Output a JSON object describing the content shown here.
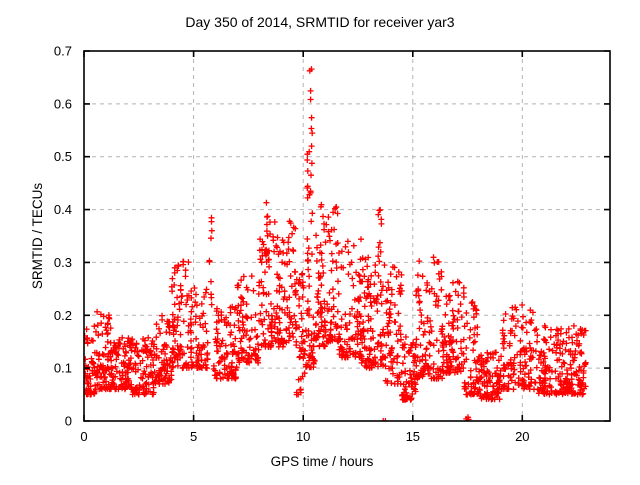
{
  "chart_data": {
    "type": "scatter",
    "title": "Day 350 of 2014, SRMTID for receiver yar3",
    "xlabel": "GPS time / hours",
    "ylabel": "SRMTID / TECUs",
    "xlim": [
      0,
      24
    ],
    "ylim": [
      0,
      0.7
    ],
    "xtick_labels": [
      "0",
      "5",
      "10",
      "15",
      "20"
    ],
    "xtick_values": [
      0,
      5,
      10,
      15,
      20
    ],
    "ytick_labels": [
      "0",
      "0.1",
      "0.2",
      "0.3",
      "0.4",
      "0.5",
      "0.6",
      "0.7"
    ],
    "ytick_values": [
      0,
      0.1,
      0.2,
      0.3,
      0.4,
      0.5,
      0.6,
      0.7
    ],
    "grid": true,
    "legend": "none",
    "marker": {
      "shape": "plus",
      "color": "#ff0000",
      "size": 7
    },
    "grid_color": "#b4b4b4",
    "border_color": "#000000",
    "background_color": "#ffffff",
    "segment_fields": [
      "hour_start",
      "hour_end",
      "y_min",
      "y_max",
      "n_points",
      "density_exponent",
      "uniform_column"
    ],
    "segments": [
      [
        0.0,
        0.55,
        0.05,
        0.18,
        60,
        2.2,
        0
      ],
      [
        0.55,
        1.25,
        0.06,
        0.21,
        80,
        2.0,
        0
      ],
      [
        1.25,
        2.2,
        0.06,
        0.16,
        95,
        1.8,
        0
      ],
      [
        2.2,
        3.2,
        0.05,
        0.16,
        90,
        1.8,
        0
      ],
      [
        3.2,
        4.0,
        0.07,
        0.2,
        75,
        1.8,
        0
      ],
      [
        4.0,
        4.85,
        0.1,
        0.31,
        80,
        1.9,
        0
      ],
      [
        4.85,
        5.65,
        0.1,
        0.26,
        70,
        1.8,
        0
      ],
      [
        5.72,
        5.88,
        0.22,
        0.41,
        10,
        1.0,
        1
      ],
      [
        5.9,
        7.0,
        0.08,
        0.22,
        95,
        1.9,
        0
      ],
      [
        7.0,
        8.0,
        0.11,
        0.28,
        85,
        1.8,
        0
      ],
      [
        8.0,
        8.7,
        0.14,
        0.36,
        65,
        1.7,
        0
      ],
      [
        8.3,
        8.5,
        0.3,
        0.43,
        12,
        1.0,
        1
      ],
      [
        8.7,
        9.7,
        0.14,
        0.38,
        95,
        1.8,
        0
      ],
      [
        9.7,
        10.08,
        0.05,
        0.28,
        40,
        1.6,
        0
      ],
      [
        10.18,
        10.42,
        0.3,
        0.7,
        26,
        1.0,
        1
      ],
      [
        10.05,
        10.55,
        0.1,
        0.32,
        45,
        1.6,
        0
      ],
      [
        10.55,
        11.05,
        0.14,
        0.42,
        65,
        1.9,
        0
      ],
      [
        11.05,
        11.65,
        0.15,
        0.43,
        60,
        1.9,
        0
      ],
      [
        11.65,
        12.65,
        0.12,
        0.35,
        95,
        1.9,
        0
      ],
      [
        12.65,
        13.35,
        0.1,
        0.31,
        80,
        1.8,
        0
      ],
      [
        13.42,
        13.58,
        0.25,
        0.4,
        10,
        1.0,
        1
      ],
      [
        13.35,
        13.72,
        0.1,
        0.3,
        30,
        1.6,
        0
      ],
      [
        13.72,
        14.5,
        0.07,
        0.3,
        75,
        2.0,
        0
      ],
      [
        14.5,
        15.15,
        0.04,
        0.16,
        65,
        1.6,
        0
      ],
      [
        15.15,
        16.35,
        0.08,
        0.31,
        105,
        2.0,
        0
      ],
      [
        16.35,
        17.35,
        0.09,
        0.27,
        95,
        1.8,
        0
      ],
      [
        17.35,
        17.95,
        0.05,
        0.23,
        55,
        1.8,
        0
      ],
      [
        17.95,
        19.05,
        0.04,
        0.13,
        100,
        1.5,
        0
      ],
      [
        19.05,
        20.6,
        0.06,
        0.22,
        125,
        1.8,
        0
      ],
      [
        20.6,
        21.7,
        0.05,
        0.18,
        90,
        1.7,
        0
      ],
      [
        21.7,
        22.9,
        0.05,
        0.18,
        125,
        1.6,
        0
      ]
    ],
    "outliers": [
      [
        13.65,
        0.0
      ],
      [
        13.75,
        0.0
      ],
      [
        17.44,
        0.004
      ],
      [
        17.48,
        0.0
      ],
      [
        17.5,
        0.0
      ],
      [
        17.52,
        0.007
      ],
      [
        17.55,
        0.003
      ]
    ]
  }
}
